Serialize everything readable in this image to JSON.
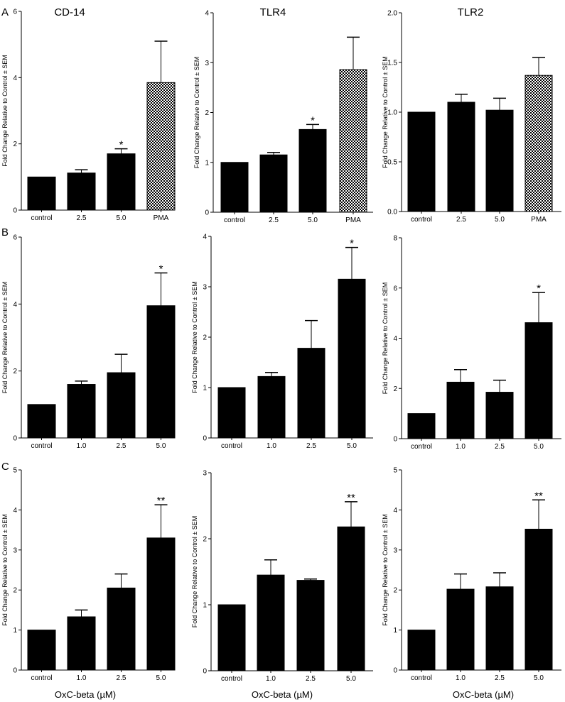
{
  "panel_letters": [
    "A",
    "B",
    "C"
  ],
  "column_titles": [
    "CD-14",
    "TLR4",
    "TLR2"
  ],
  "x_axis_label": "OxC-beta (µM)",
  "colors": {
    "bar": "#000000",
    "pma_pattern": "checkerboard",
    "axis": "#000000"
  },
  "chart_data": [
    {
      "type": "bar",
      "panel": "A",
      "title": "CD-14",
      "ylabel": "Fold Change Relative to Control ± SEM",
      "categories": [
        "control",
        "2.5",
        "5.0",
        "PMA"
      ],
      "values": [
        1.0,
        1.12,
        1.7,
        3.85
      ],
      "errors": [
        0,
        0.1,
        0.15,
        1.25
      ],
      "significance": [
        "",
        "",
        "*",
        ""
      ],
      "patterned": [
        false,
        false,
        false,
        true
      ],
      "ylim": [
        0,
        6
      ],
      "yticks": [
        0,
        2,
        4,
        6
      ],
      "ytick_labels": [
        "0",
        "2",
        "4",
        "6"
      ]
    },
    {
      "type": "bar",
      "panel": "A",
      "title": "TLR4",
      "ylabel": "Fold Change Relative to Control ± SEM",
      "categories": [
        "control",
        "2.5",
        "5.0",
        "PMA"
      ],
      "values": [
        1.0,
        1.15,
        1.66,
        2.86
      ],
      "errors": [
        0,
        0.05,
        0.1,
        0.65
      ],
      "significance": [
        "",
        "",
        "*",
        ""
      ],
      "patterned": [
        false,
        false,
        false,
        true
      ],
      "ylim": [
        0,
        4
      ],
      "yticks": [
        0,
        1,
        2,
        3,
        4
      ],
      "ytick_labels": [
        "0",
        "1",
        "2",
        "3",
        "4"
      ]
    },
    {
      "type": "bar",
      "panel": "A",
      "title": "TLR2",
      "ylabel": "Fold Change Relative to Control ± SEM",
      "categories": [
        "control",
        "2.5",
        "5.0",
        "PMA"
      ],
      "values": [
        1.0,
        1.1,
        1.02,
        1.37
      ],
      "errors": [
        0,
        0.08,
        0.12,
        0.18
      ],
      "significance": [
        "",
        "",
        "",
        ""
      ],
      "patterned": [
        false,
        false,
        false,
        true
      ],
      "ylim": [
        0,
        2
      ],
      "yticks": [
        0,
        0.5,
        1,
        1.5,
        2
      ],
      "ytick_labels": [
        "0.0",
        "0.5",
        "1.0",
        "1.5",
        "2.0"
      ]
    },
    {
      "type": "bar",
      "panel": "B",
      "ylabel": "Fold Change Relative to Control ± SEM",
      "categories": [
        "control",
        "1.0",
        "2.5",
        "5.0"
      ],
      "values": [
        1.0,
        1.6,
        1.95,
        3.95
      ],
      "errors": [
        0,
        0.1,
        0.55,
        0.98
      ],
      "significance": [
        "",
        "",
        "",
        "*"
      ],
      "patterned": [
        false,
        false,
        false,
        false
      ],
      "ylim": [
        0,
        6
      ],
      "yticks": [
        0,
        2,
        4,
        6
      ],
      "ytick_labels": [
        "0",
        "2",
        "4",
        "6"
      ]
    },
    {
      "type": "bar",
      "panel": "B",
      "ylabel": "Fold Change Relative to Control ± SEM",
      "categories": [
        "control",
        "1.0",
        "2.5",
        "5.0"
      ],
      "values": [
        1.0,
        1.22,
        1.78,
        3.15
      ],
      "errors": [
        0,
        0.08,
        0.55,
        0.63
      ],
      "significance": [
        "",
        "",
        "",
        "*"
      ],
      "patterned": [
        false,
        false,
        false,
        false
      ],
      "ylim": [
        0,
        4
      ],
      "yticks": [
        0,
        1,
        2,
        3,
        4
      ],
      "ytick_labels": [
        "0",
        "1",
        "2",
        "3",
        "4"
      ]
    },
    {
      "type": "bar",
      "panel": "B",
      "ylabel": "Fold Change Relative to Control ± SEM",
      "categories": [
        "control",
        "1.0",
        "2.5",
        "5.0"
      ],
      "values": [
        1.0,
        2.25,
        1.85,
        4.62
      ],
      "errors": [
        0,
        0.5,
        0.48,
        1.2
      ],
      "significance": [
        "",
        "",
        "",
        "*"
      ],
      "patterned": [
        false,
        false,
        false,
        false
      ],
      "ylim": [
        0,
        8
      ],
      "yticks": [
        0,
        2,
        4,
        6,
        8
      ],
      "ytick_labels": [
        "0",
        "2",
        "4",
        "6",
        "8"
      ]
    },
    {
      "type": "bar",
      "panel": "C",
      "ylabel": "Fold Change Relative to Control ± SEM",
      "categories": [
        "control",
        "1.0",
        "2.5",
        "5.0"
      ],
      "values": [
        1.0,
        1.33,
        2.05,
        3.3
      ],
      "errors": [
        0,
        0.17,
        0.35,
        0.83
      ],
      "significance": [
        "",
        "",
        "",
        "**"
      ],
      "patterned": [
        false,
        false,
        false,
        false
      ],
      "ylim": [
        0,
        5
      ],
      "yticks": [
        0,
        1,
        2,
        3,
        4,
        5
      ],
      "ytick_labels": [
        "0",
        "1",
        "2",
        "3",
        "4",
        "5"
      ]
    },
    {
      "type": "bar",
      "panel": "C",
      "ylabel": "Fold Change Relative to Control ± SEM",
      "categories": [
        "control",
        "1.0",
        "2.5",
        "5.0"
      ],
      "values": [
        1.0,
        1.45,
        1.37,
        2.18
      ],
      "errors": [
        0,
        0.23,
        0.02,
        0.38
      ],
      "significance": [
        "",
        "",
        "",
        "**"
      ],
      "patterned": [
        false,
        false,
        false,
        false
      ],
      "ylim": [
        0,
        3
      ],
      "yticks": [
        0,
        1,
        2,
        3
      ],
      "ytick_labels": [
        "0",
        "1",
        "2",
        "3"
      ]
    },
    {
      "type": "bar",
      "panel": "C",
      "ylabel": "Fold Change Relative to Control ± SEM",
      "categories": [
        "control",
        "1.0",
        "2.5",
        "5.0"
      ],
      "values": [
        1.0,
        2.02,
        2.08,
        3.52
      ],
      "errors": [
        0,
        0.38,
        0.35,
        0.73
      ],
      "significance": [
        "",
        "",
        "",
        "**"
      ],
      "patterned": [
        false,
        false,
        false,
        false
      ],
      "ylim": [
        0,
        5
      ],
      "yticks": [
        0,
        1,
        2,
        3,
        4,
        5
      ],
      "ytick_labels": [
        "0",
        "1",
        "2",
        "3",
        "4",
        "5"
      ]
    }
  ]
}
